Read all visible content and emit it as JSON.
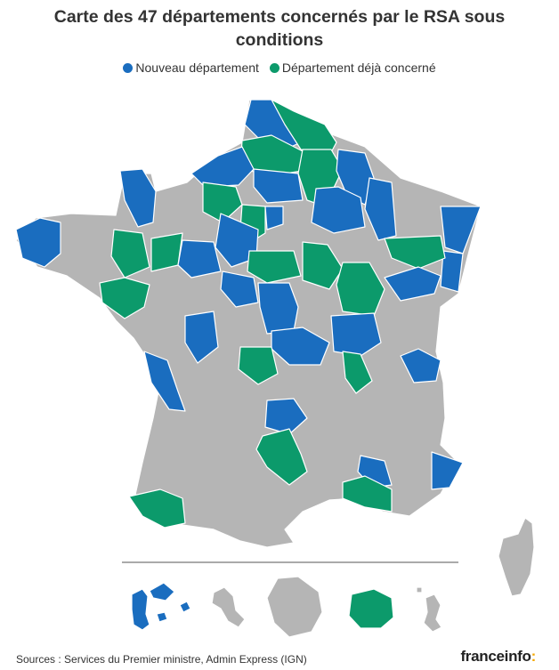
{
  "title": "Carte des 47 départements concernés par le RSA sous conditions",
  "legend": [
    {
      "label": "Nouveau département",
      "color": "#1a6dbf"
    },
    {
      "label": "Département déjà concerné",
      "color": "#0c9a6b"
    }
  ],
  "colors": {
    "nouveau": "#1a6dbf",
    "deja": "#0c9a6b",
    "non_concerne": "#b5b5b5"
  },
  "footer": {
    "source": "Sources : Services du Premier ministre, Admin Express (IGN)",
    "logo_text": "franceinfo",
    "logo_colon": ":"
  }
}
